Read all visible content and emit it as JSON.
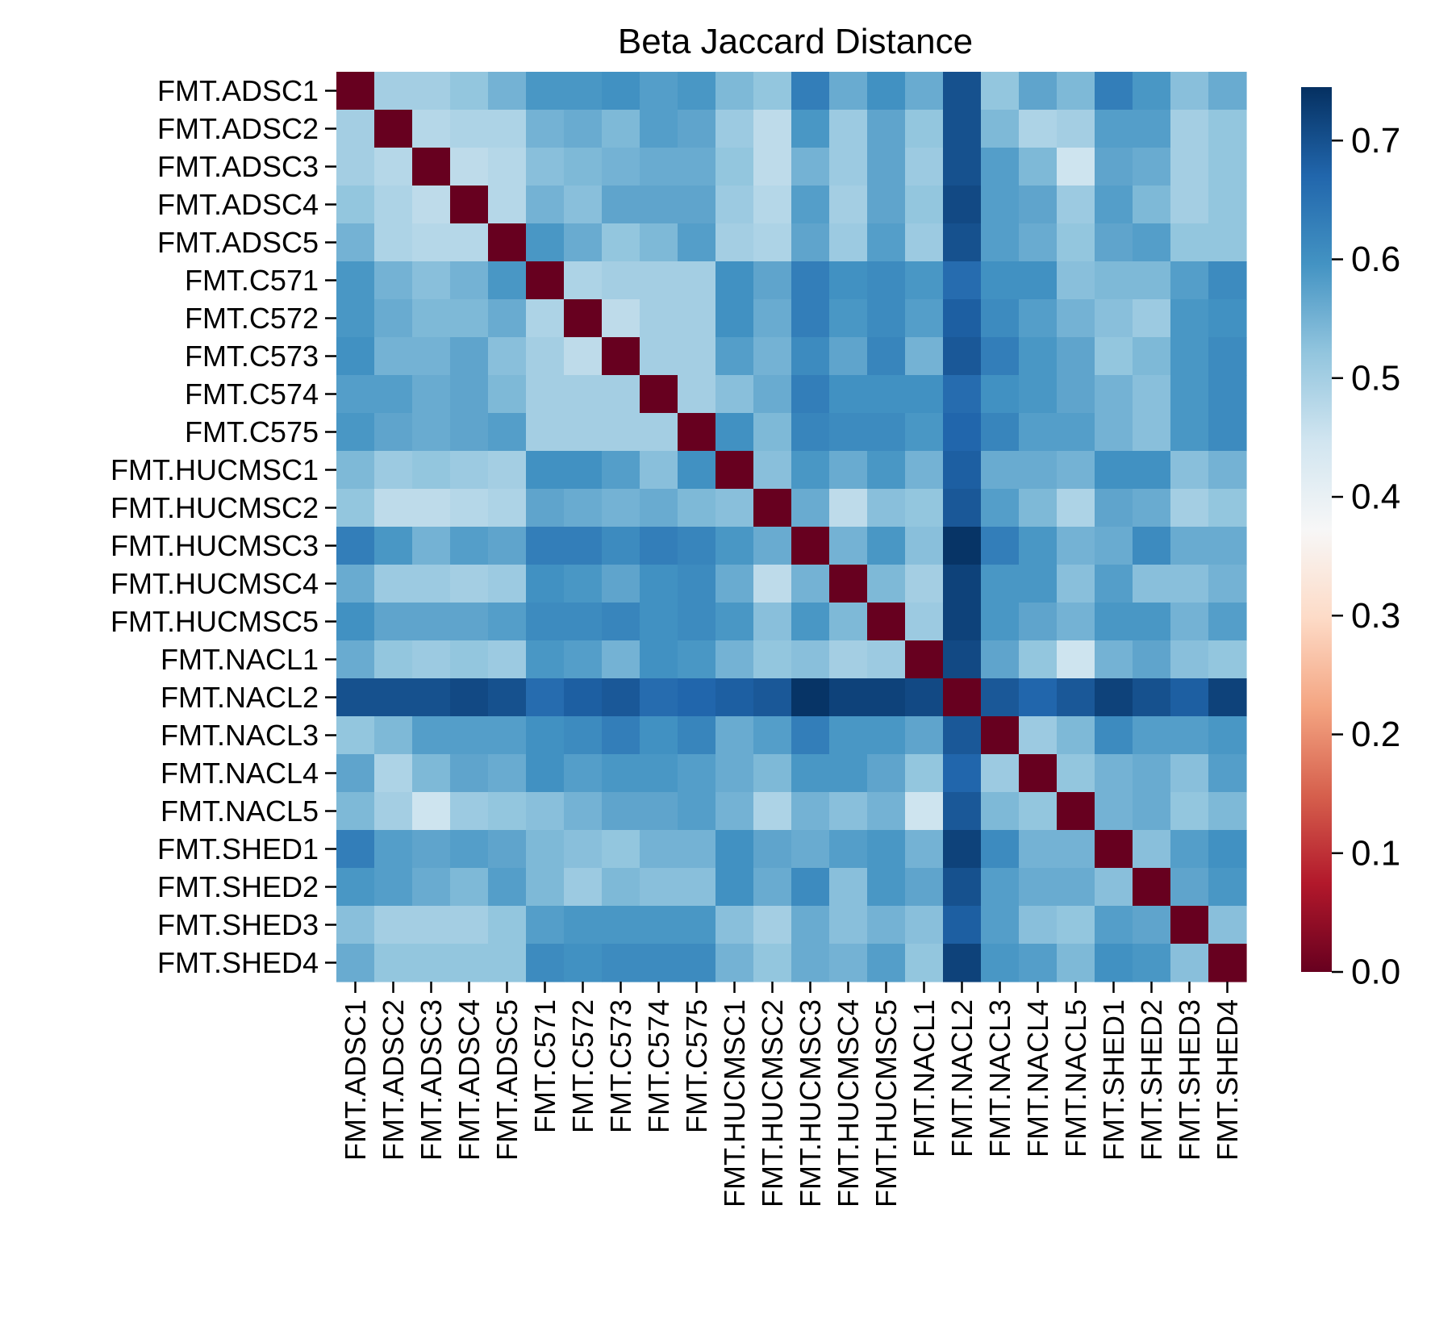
{
  "chart_data": {
    "type": "heatmap",
    "title": "Beta Jaccard Distance",
    "xlabel": "",
    "ylabel": "",
    "labels": [
      "FMT.ADSC1",
      "FMT.ADSC2",
      "FMT.ADSC3",
      "FMT.ADSC4",
      "FMT.ADSC5",
      "FMT.C571",
      "FMT.C572",
      "FMT.C573",
      "FMT.C574",
      "FMT.C575",
      "FMT.HUCMSC1",
      "FMT.HUCMSC2",
      "FMT.HUCMSC3",
      "FMT.HUCMSC4",
      "FMT.HUCMSC5",
      "FMT.NACL1",
      "FMT.NACL2",
      "FMT.NACL3",
      "FMT.NACL4",
      "FMT.NACL5",
      "FMT.SHED1",
      "FMT.SHED2",
      "FMT.SHED3",
      "FMT.SHED4"
    ],
    "values": [
      [
        0.0,
        0.5,
        0.5,
        0.52,
        0.55,
        0.59,
        0.59,
        0.6,
        0.58,
        0.59,
        0.54,
        0.52,
        0.63,
        0.56,
        0.6,
        0.56,
        0.7,
        0.52,
        0.57,
        0.54,
        0.63,
        0.59,
        0.53,
        0.56
      ],
      [
        0.5,
        0.0,
        0.48,
        0.49,
        0.49,
        0.55,
        0.56,
        0.54,
        0.58,
        0.57,
        0.51,
        0.47,
        0.59,
        0.51,
        0.57,
        0.52,
        0.7,
        0.54,
        0.49,
        0.5,
        0.58,
        0.58,
        0.5,
        0.52
      ],
      [
        0.5,
        0.48,
        0.0,
        0.47,
        0.48,
        0.53,
        0.54,
        0.55,
        0.56,
        0.56,
        0.52,
        0.47,
        0.55,
        0.51,
        0.57,
        0.51,
        0.7,
        0.58,
        0.54,
        0.45,
        0.57,
        0.56,
        0.5,
        0.52
      ],
      [
        0.52,
        0.49,
        0.47,
        0.0,
        0.48,
        0.55,
        0.53,
        0.57,
        0.57,
        0.57,
        0.51,
        0.48,
        0.58,
        0.5,
        0.57,
        0.52,
        0.71,
        0.58,
        0.57,
        0.51,
        0.58,
        0.54,
        0.5,
        0.52
      ],
      [
        0.55,
        0.49,
        0.48,
        0.48,
        0.0,
        0.59,
        0.56,
        0.52,
        0.54,
        0.58,
        0.5,
        0.49,
        0.57,
        0.51,
        0.58,
        0.51,
        0.7,
        0.58,
        0.56,
        0.52,
        0.57,
        0.58,
        0.52,
        0.52
      ],
      [
        0.59,
        0.55,
        0.53,
        0.55,
        0.59,
        0.0,
        0.49,
        0.5,
        0.5,
        0.5,
        0.6,
        0.57,
        0.63,
        0.6,
        0.61,
        0.59,
        0.66,
        0.6,
        0.6,
        0.53,
        0.54,
        0.54,
        0.58,
        0.61
      ],
      [
        0.59,
        0.56,
        0.54,
        0.54,
        0.56,
        0.49,
        0.0,
        0.47,
        0.5,
        0.5,
        0.6,
        0.56,
        0.63,
        0.59,
        0.61,
        0.58,
        0.68,
        0.61,
        0.58,
        0.55,
        0.53,
        0.51,
        0.59,
        0.6
      ],
      [
        0.6,
        0.55,
        0.55,
        0.57,
        0.53,
        0.5,
        0.47,
        0.0,
        0.5,
        0.5,
        0.58,
        0.55,
        0.61,
        0.57,
        0.62,
        0.55,
        0.69,
        0.63,
        0.59,
        0.57,
        0.52,
        0.54,
        0.59,
        0.61
      ],
      [
        0.58,
        0.58,
        0.56,
        0.57,
        0.54,
        0.5,
        0.5,
        0.5,
        0.0,
        0.5,
        0.53,
        0.56,
        0.63,
        0.6,
        0.6,
        0.6,
        0.66,
        0.6,
        0.59,
        0.57,
        0.55,
        0.53,
        0.59,
        0.61
      ],
      [
        0.59,
        0.57,
        0.56,
        0.57,
        0.58,
        0.5,
        0.5,
        0.5,
        0.5,
        0.0,
        0.6,
        0.54,
        0.62,
        0.61,
        0.61,
        0.59,
        0.67,
        0.62,
        0.58,
        0.58,
        0.55,
        0.53,
        0.59,
        0.61
      ],
      [
        0.54,
        0.51,
        0.52,
        0.51,
        0.5,
        0.6,
        0.6,
        0.58,
        0.53,
        0.6,
        0.0,
        0.53,
        0.59,
        0.56,
        0.59,
        0.55,
        0.68,
        0.56,
        0.56,
        0.55,
        0.6,
        0.6,
        0.53,
        0.55
      ],
      [
        0.52,
        0.47,
        0.47,
        0.48,
        0.49,
        0.57,
        0.56,
        0.55,
        0.56,
        0.54,
        0.53,
        0.0,
        0.56,
        0.47,
        0.53,
        0.52,
        0.69,
        0.58,
        0.54,
        0.49,
        0.57,
        0.56,
        0.5,
        0.52
      ],
      [
        0.63,
        0.59,
        0.55,
        0.58,
        0.57,
        0.63,
        0.63,
        0.61,
        0.63,
        0.62,
        0.59,
        0.56,
        0.0,
        0.55,
        0.59,
        0.53,
        0.74,
        0.63,
        0.59,
        0.55,
        0.56,
        0.61,
        0.56,
        0.56
      ],
      [
        0.56,
        0.51,
        0.51,
        0.5,
        0.51,
        0.6,
        0.59,
        0.57,
        0.6,
        0.61,
        0.56,
        0.47,
        0.55,
        0.0,
        0.54,
        0.5,
        0.72,
        0.59,
        0.59,
        0.53,
        0.58,
        0.53,
        0.53,
        0.55
      ],
      [
        0.6,
        0.57,
        0.57,
        0.57,
        0.58,
        0.61,
        0.61,
        0.62,
        0.6,
        0.61,
        0.59,
        0.53,
        0.59,
        0.54,
        0.0,
        0.51,
        0.72,
        0.59,
        0.57,
        0.55,
        0.59,
        0.59,
        0.55,
        0.58
      ],
      [
        0.56,
        0.52,
        0.51,
        0.52,
        0.51,
        0.59,
        0.58,
        0.55,
        0.6,
        0.59,
        0.55,
        0.52,
        0.53,
        0.5,
        0.51,
        0.0,
        0.71,
        0.57,
        0.52,
        0.45,
        0.55,
        0.57,
        0.53,
        0.52
      ],
      [
        0.7,
        0.7,
        0.7,
        0.71,
        0.7,
        0.66,
        0.68,
        0.69,
        0.66,
        0.67,
        0.68,
        0.69,
        0.74,
        0.72,
        0.72,
        0.71,
        0.0,
        0.69,
        0.67,
        0.69,
        0.72,
        0.7,
        0.68,
        0.72
      ],
      [
        0.52,
        0.54,
        0.58,
        0.58,
        0.58,
        0.6,
        0.61,
        0.63,
        0.6,
        0.62,
        0.56,
        0.58,
        0.63,
        0.59,
        0.59,
        0.57,
        0.69,
        0.0,
        0.51,
        0.54,
        0.61,
        0.58,
        0.58,
        0.59
      ],
      [
        0.57,
        0.49,
        0.54,
        0.57,
        0.56,
        0.6,
        0.58,
        0.59,
        0.59,
        0.58,
        0.56,
        0.54,
        0.59,
        0.59,
        0.57,
        0.52,
        0.67,
        0.51,
        0.0,
        0.52,
        0.55,
        0.56,
        0.53,
        0.58
      ],
      [
        0.54,
        0.5,
        0.45,
        0.51,
        0.52,
        0.53,
        0.55,
        0.57,
        0.57,
        0.58,
        0.55,
        0.49,
        0.55,
        0.53,
        0.55,
        0.45,
        0.69,
        0.54,
        0.52,
        0.0,
        0.55,
        0.56,
        0.52,
        0.54
      ],
      [
        0.63,
        0.58,
        0.57,
        0.58,
        0.57,
        0.54,
        0.53,
        0.52,
        0.55,
        0.55,
        0.6,
        0.57,
        0.56,
        0.58,
        0.59,
        0.55,
        0.72,
        0.61,
        0.55,
        0.55,
        0.0,
        0.53,
        0.58,
        0.6
      ],
      [
        0.59,
        0.58,
        0.56,
        0.54,
        0.58,
        0.54,
        0.51,
        0.54,
        0.53,
        0.53,
        0.6,
        0.56,
        0.61,
        0.53,
        0.59,
        0.57,
        0.7,
        0.58,
        0.56,
        0.56,
        0.53,
        0.0,
        0.57,
        0.59
      ],
      [
        0.53,
        0.5,
        0.5,
        0.5,
        0.52,
        0.58,
        0.59,
        0.59,
        0.59,
        0.59,
        0.53,
        0.5,
        0.56,
        0.53,
        0.55,
        0.53,
        0.68,
        0.58,
        0.53,
        0.52,
        0.58,
        0.57,
        0.0,
        0.53
      ],
      [
        0.56,
        0.52,
        0.52,
        0.52,
        0.52,
        0.61,
        0.6,
        0.61,
        0.61,
        0.61,
        0.55,
        0.52,
        0.56,
        0.55,
        0.58,
        0.52,
        0.72,
        0.59,
        0.58,
        0.54,
        0.6,
        0.59,
        0.53,
        0.0
      ]
    ],
    "colorbar": {
      "vmin": 0.0,
      "vmax": 0.745,
      "ticks": [
        0.0,
        0.1,
        0.2,
        0.3,
        0.4,
        0.5,
        0.6,
        0.7
      ],
      "tick_labels": [
        "0.0",
        "0.1",
        "0.2",
        "0.3",
        "0.4",
        "0.5",
        "0.6",
        "0.7"
      ],
      "colormap": "RdBu",
      "colors": [
        "#67001f",
        "#b2182b",
        "#d6604d",
        "#f4a582",
        "#fddbc7",
        "#f7f7f7",
        "#d1e5f0",
        "#92c5de",
        "#4393c3",
        "#2166ac",
        "#053061"
      ]
    }
  }
}
